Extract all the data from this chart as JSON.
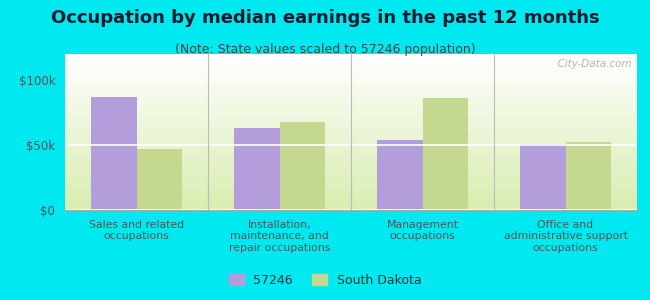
{
  "title": "Occupation by median earnings in the past 12 months",
  "subtitle": "(Note: State values scaled to 57246 population)",
  "categories": [
    "Sales and related\noccupations",
    "Installation,\nmaintenance, and\nrepair occupations",
    "Management\noccupations",
    "Office and\nadministrative support\noccupations"
  ],
  "values_57246": [
    87000,
    63000,
    54000,
    51000
  ],
  "values_sd": [
    47000,
    68000,
    86000,
    52000
  ],
  "color_57246": "#b39ddb",
  "color_sd": "#c5d890",
  "ylim": [
    0,
    120000
  ],
  "yticks": [
    0,
    50000,
    100000
  ],
  "ytick_labels": [
    "$0",
    "$50k",
    "$100k"
  ],
  "legend_labels": [
    "57246",
    "South Dakota"
  ],
  "bg_top": "#ffffff",
  "bg_bottom": "#d8edb0",
  "outer_background": "#00e8f0",
  "watermark": "  City-Data.com",
  "bar_width": 0.32,
  "title_fontsize": 13,
  "subtitle_fontsize": 9,
  "tick_fontsize": 8.5,
  "xlabel_fontsize": 7.8
}
